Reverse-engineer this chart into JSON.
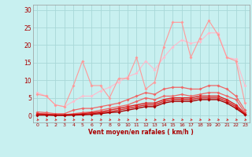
{
  "x": [
    0,
    1,
    2,
    3,
    4,
    5,
    6,
    7,
    8,
    9,
    10,
    11,
    12,
    13,
    14,
    15,
    16,
    17,
    18,
    19,
    20,
    21,
    22,
    23
  ],
  "line_lightest": [
    6.5,
    5.5,
    3.0,
    2.5,
    4.0,
    5.5,
    5.5,
    7.0,
    8.0,
    9.5,
    11.0,
    12.0,
    15.5,
    13.0,
    16.5,
    19.5,
    21.5,
    20.5,
    21.0,
    23.5,
    23.5,
    16.5,
    16.0,
    8.5
  ],
  "line_light1": [
    6.0,
    5.5,
    3.0,
    2.5,
    8.5,
    15.5,
    8.5,
    8.5,
    5.0,
    10.5,
    10.5,
    16.5,
    7.5,
    9.5,
    19.5,
    26.5,
    26.5,
    16.5,
    22.0,
    27.0,
    23.0,
    16.5,
    15.5,
    3.5
  ],
  "line_med1": [
    1.0,
    0.8,
    0.5,
    0.5,
    1.5,
    2.0,
    2.0,
    2.5,
    3.0,
    3.5,
    4.5,
    5.5,
    6.5,
    6.0,
    7.5,
    8.0,
    8.0,
    7.5,
    7.5,
    8.5,
    8.5,
    7.5,
    5.5,
    1.5
  ],
  "line_med2": [
    0.5,
    0.5,
    0.2,
    0.2,
    0.5,
    0.8,
    1.0,
    1.5,
    2.0,
    2.5,
    3.0,
    4.0,
    5.0,
    4.5,
    5.5,
    5.5,
    6.0,
    5.5,
    6.0,
    6.5,
    6.5,
    5.5,
    4.5,
    0.8
  ],
  "line_dark1": [
    0.5,
    0.3,
    0.2,
    0.2,
    0.3,
    0.5,
    0.8,
    1.0,
    1.5,
    2.0,
    2.5,
    3.0,
    3.5,
    3.5,
    4.5,
    5.0,
    5.0,
    5.0,
    5.5,
    5.5,
    5.5,
    4.5,
    3.0,
    0.5
  ],
  "line_dark2": [
    0.2,
    0.2,
    0.1,
    0.1,
    0.2,
    0.3,
    0.5,
    0.8,
    1.0,
    1.5,
    2.0,
    2.5,
    3.0,
    3.0,
    4.0,
    4.5,
    4.5,
    4.5,
    5.0,
    5.0,
    5.0,
    4.0,
    2.5,
    0.3
  ],
  "line_darkest": [
    0.1,
    0.1,
    0.0,
    0.0,
    0.1,
    0.2,
    0.3,
    0.5,
    0.8,
    1.0,
    1.5,
    2.0,
    2.5,
    2.5,
    3.5,
    4.0,
    4.0,
    4.0,
    4.5,
    4.5,
    4.5,
    3.5,
    2.0,
    0.2
  ],
  "bg_color": "#c8f0f0",
  "grid_color": "#a8d8d8",
  "color_lightest": "#ffbbcc",
  "color_light": "#ff9999",
  "color_med": "#ee6666",
  "color_dark": "#dd2222",
  "color_darkest": "#aa0000",
  "xlabel": "Vent moyen/en rafales ( km/h )",
  "yticks": [
    0,
    5,
    10,
    15,
    20,
    25,
    30
  ],
  "xlim": [
    -0.5,
    23.5
  ],
  "ylim": [
    -2.0,
    31.5
  ]
}
